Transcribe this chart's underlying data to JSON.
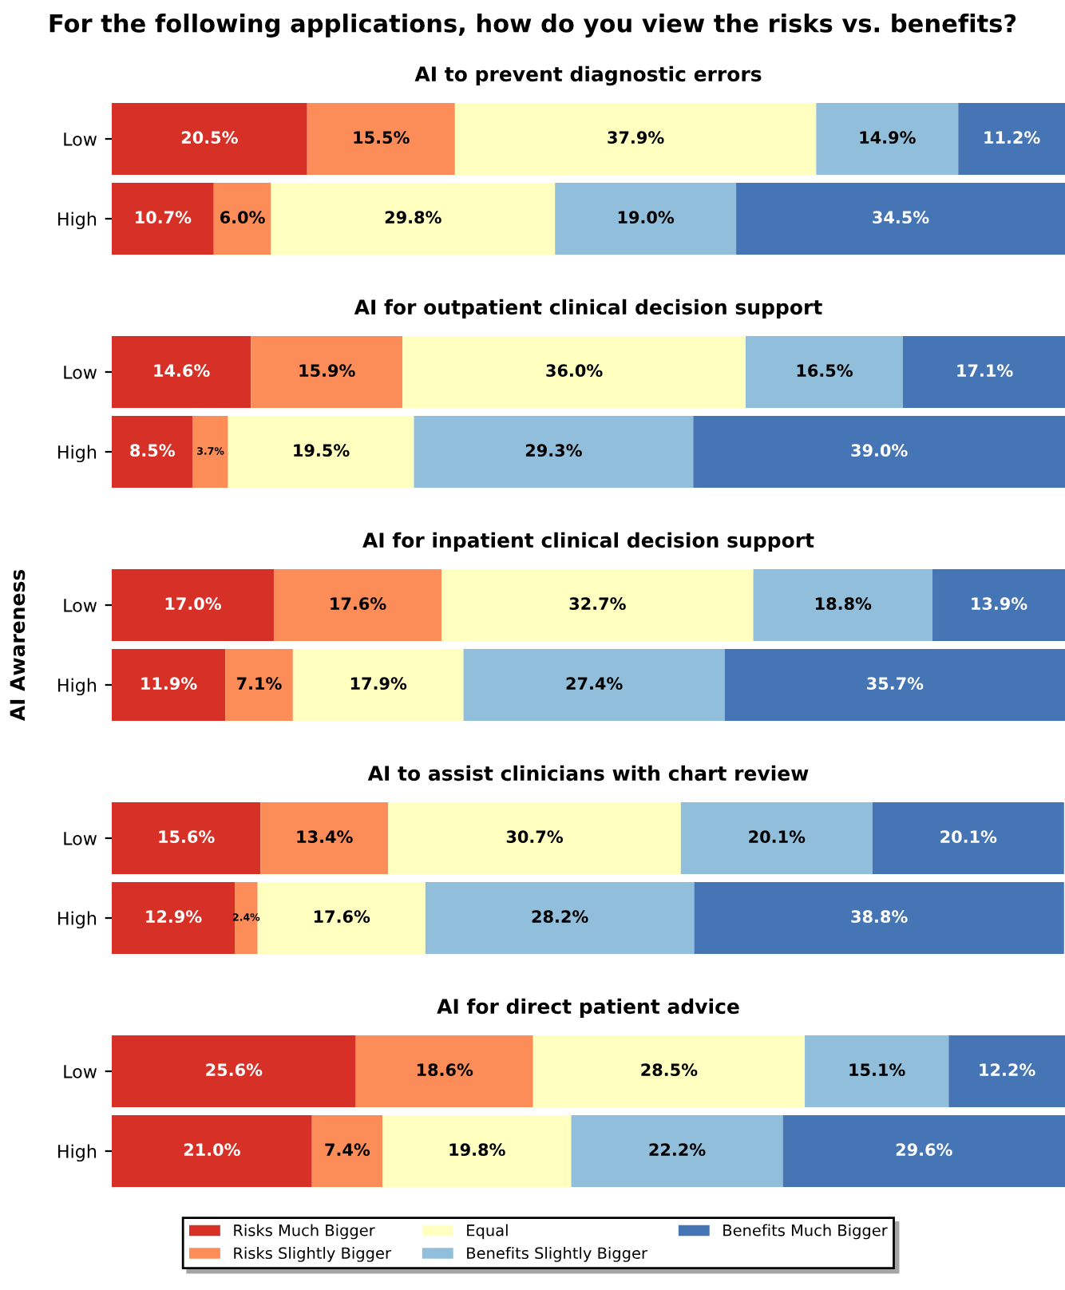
{
  "chart_data": [
    {
      "type": "bar",
      "orientation": "horizontal",
      "stacked": true,
      "title": "AI to prevent diagnostic errors",
      "annotations": [
        "For the following applications, how do you view the risks vs. benefits?"
      ],
      "categories": [
        "Low",
        "High"
      ],
      "xlim": [
        0,
        100
      ],
      "tick_labels": "y",
      "series": [
        {
          "color": "#d73027",
          "values": [
            20.5,
            10.7
          ],
          "value_labels": [
            "20.5%",
            "10.7%"
          ]
        },
        {
          "color": "#fc8d59",
          "values": [
            15.5,
            6.0
          ],
          "value_labels": [
            "15.5%",
            "6.0%"
          ]
        },
        {
          "color": "#ffffbf",
          "values": [
            37.9,
            29.8
          ],
          "value_labels": [
            "37.9%",
            "29.8%"
          ]
        },
        {
          "color": "#91bfdb",
          "values": [
            14.9,
            19.0
          ],
          "value_labels": [
            "14.9%",
            "19.0%"
          ]
        },
        {
          "color": "#4575b4",
          "values": [
            11.2,
            34.5
          ],
          "value_labels": [
            "11.2%",
            "34.5%"
          ]
        }
      ]
    },
    {
      "type": "bar",
      "orientation": "horizontal",
      "stacked": true,
      "title": "AI for outpatient clinical decision support",
      "categories": [
        "Low",
        "High"
      ],
      "xlim": [
        0,
        100
      ],
      "tick_labels": "y",
      "series": [
        {
          "color": "#d73027",
          "values": [
            14.6,
            8.5
          ],
          "value_labels": [
            "14.6%",
            "8.5%"
          ]
        },
        {
          "color": "#fc8d59",
          "values": [
            15.9,
            3.7
          ],
          "value_labels": [
            "15.9%",
            "3.7%"
          ]
        },
        {
          "color": "#ffffbf",
          "values": [
            36.0,
            19.5
          ],
          "value_labels": [
            "36.0%",
            "19.5%"
          ]
        },
        {
          "color": "#91bfdb",
          "values": [
            16.5,
            29.3
          ],
          "value_labels": [
            "16.5%",
            "29.3%"
          ]
        },
        {
          "color": "#4575b4",
          "values": [
            17.1,
            39.0
          ],
          "value_labels": [
            "17.1%",
            "39.0%"
          ]
        }
      ]
    },
    {
      "type": "bar",
      "orientation": "horizontal",
      "stacked": true,
      "title": "AI for inpatient clinical decision support",
      "ylabel": "AI Awareness",
      "categories": [
        "Low",
        "High"
      ],
      "xlim": [
        0,
        100
      ],
      "tick_labels": "y",
      "series": [
        {
          "color": "#d73027",
          "values": [
            17.0,
            11.9
          ],
          "value_labels": [
            "17.0%",
            "11.9%"
          ]
        },
        {
          "color": "#fc8d59",
          "values": [
            17.6,
            7.1
          ],
          "value_labels": [
            "17.6%",
            "7.1%"
          ]
        },
        {
          "color": "#ffffbf",
          "values": [
            32.7,
            17.9
          ],
          "value_labels": [
            "32.7%",
            "17.9%"
          ]
        },
        {
          "color": "#91bfdb",
          "values": [
            18.8,
            27.4
          ],
          "value_labels": [
            "18.8%",
            "27.4%"
          ]
        },
        {
          "color": "#4575b4",
          "values": [
            13.9,
            35.7
          ],
          "value_labels": [
            "13.9%",
            "35.7%"
          ]
        }
      ]
    },
    {
      "type": "bar",
      "orientation": "horizontal",
      "stacked": true,
      "title": "AI to assist clinicians with chart review",
      "categories": [
        "Low",
        "High"
      ],
      "xlim": [
        0,
        100
      ],
      "tick_labels": "y",
      "series": [
        {
          "color": "#d73027",
          "values": [
            15.6,
            12.9
          ],
          "value_labels": [
            "15.6%",
            "12.9%"
          ]
        },
        {
          "color": "#fc8d59",
          "values": [
            13.4,
            2.4
          ],
          "value_labels": [
            "13.4%",
            "2.4%"
          ]
        },
        {
          "color": "#ffffbf",
          "values": [
            30.7,
            17.6
          ],
          "value_labels": [
            "30.7%",
            "17.6%"
          ]
        },
        {
          "color": "#91bfdb",
          "values": [
            20.1,
            28.2
          ],
          "value_labels": [
            "20.1%",
            "28.2%"
          ]
        },
        {
          "color": "#4575b4",
          "values": [
            20.1,
            38.8
          ],
          "value_labels": [
            "20.1%",
            "38.8%"
          ]
        }
      ]
    },
    {
      "type": "bar",
      "orientation": "horizontal",
      "stacked": true,
      "title": "AI for direct patient advice",
      "categories": [
        "Low",
        "High"
      ],
      "xlim": [
        0,
        100
      ],
      "tick_labels": "y",
      "legend": "bottom",
      "series": [
        {
          "name": "Risks Much Bigger",
          "color": "#d73027",
          "values": [
            25.6,
            21.0
          ],
          "value_labels": [
            "25.6%",
            "21.0%"
          ]
        },
        {
          "name": "Risks Slightly Bigger",
          "color": "#fc8d59",
          "values": [
            18.6,
            7.4
          ],
          "value_labels": [
            "18.6%",
            "7.4%"
          ]
        },
        {
          "name": "Equal",
          "color": "#ffffbf",
          "values": [
            28.5,
            19.8
          ],
          "value_labels": [
            "28.5%",
            "19.8%"
          ]
        },
        {
          "name": "Benefits Slightly Bigger",
          "color": "#91bfdb",
          "values": [
            15.1,
            22.2
          ],
          "value_labels": [
            "15.1%",
            "22.2%"
          ]
        },
        {
          "name": "Benefits Much Bigger",
          "color": "#4575b4",
          "values": [
            12.2,
            29.6
          ],
          "value_labels": [
            "12.2%",
            "29.6%"
          ]
        }
      ]
    }
  ]
}
